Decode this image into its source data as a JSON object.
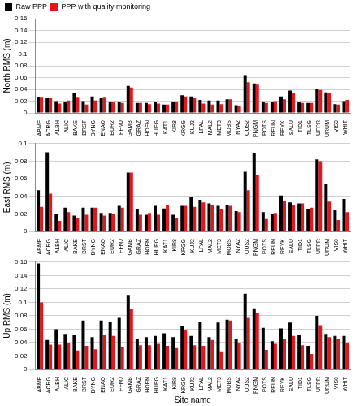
{
  "chart_data": [
    {
      "type": "bar",
      "y_label": "North RMS (m)",
      "grid": true,
      "legend": "top",
      "categories": [
        "ABMF",
        "ACRG",
        "ALBH",
        "ALIC",
        "BAKE",
        "BRST",
        "DYNG",
        "ENAO",
        "EUR2",
        "FFMJ",
        "GAMB",
        "GRAZ",
        "HOFN",
        "HUEG",
        "KAT1",
        "KIR8",
        "KRGG",
        "KUJ2",
        "LPAL",
        "MAL2",
        "MET3",
        "MOBS",
        "NYA2",
        "OUS2",
        "PNGM",
        "POTS",
        "REUN",
        "REYK",
        "SALU",
        "TID1",
        "TLSG",
        "UFPR",
        "URUM",
        "VIS0",
        "WHIT"
      ],
      "series": [
        {
          "name": "Raw PPP",
          "color": "#000000",
          "values": [
            0.027,
            0.025,
            0.02,
            0.018,
            0.033,
            0.02,
            0.028,
            0.025,
            0.018,
            0.018,
            0.046,
            0.017,
            0.017,
            0.019,
            0.014,
            0.018,
            0.03,
            0.028,
            0.022,
            0.021,
            0.021,
            0.023,
            0.013,
            0.064,
            0.05,
            0.018,
            0.019,
            0.028,
            0.038,
            0.018,
            0.017,
            0.041,
            0.035,
            0.015,
            0.02
          ]
        },
        {
          "name": "PPP with quality monitoring",
          "color": "#e8141c",
          "values": [
            0.026,
            0.025,
            0.016,
            0.021,
            0.026,
            0.014,
            0.021,
            0.026,
            0.018,
            0.017,
            0.043,
            0.017,
            0.015,
            0.016,
            0.014,
            0.019,
            0.028,
            0.025,
            0.016,
            0.014,
            0.015,
            0.023,
            0.012,
            0.052,
            0.048,
            0.017,
            0.02,
            0.023,
            0.034,
            0.017,
            0.017,
            0.039,
            0.033,
            0.014,
            0.022
          ]
        }
      ],
      "ylim": [
        0,
        0.16
      ],
      "yticks": [
        0,
        0.02,
        0.04,
        0.06,
        0.08,
        0.1,
        0.12,
        0.14,
        0.16
      ]
    },
    {
      "type": "bar",
      "y_label": "East RMS (m)",
      "grid": true,
      "categories": [
        "ABMF",
        "ACRG",
        "ALBH",
        "ALIC",
        "BAKE",
        "BRST",
        "DYNG",
        "ENAO",
        "EUR2",
        "FFMJ",
        "GAMB",
        "GRAZ",
        "HOFN",
        "HUEG",
        "KAT1",
        "KIR8",
        "KRGG",
        "KUJ2",
        "LPAL",
        "MAL2",
        "MET3",
        "MOBS",
        "NYA2",
        "OUS2",
        "PNGM",
        "POTS",
        "REUN",
        "REYK",
        "SALU",
        "TID1",
        "TLSG",
        "UFPR",
        "URUM",
        "VIS0",
        "WHIT"
      ],
      "series": [
        {
          "name": "Raw PPP",
          "color": "#000000",
          "values": [
            0.047,
            0.09,
            0.02,
            0.027,
            0.018,
            0.027,
            0.027,
            0.021,
            0.021,
            0.029,
            0.067,
            0.025,
            0.019,
            0.029,
            0.026,
            0.019,
            0.029,
            0.039,
            0.036,
            0.032,
            0.029,
            0.03,
            0.023,
            0.068,
            0.089,
            0.022,
            0.02,
            0.041,
            0.033,
            0.032,
            0.025,
            0.082,
            0.054,
            0.024,
            0.037
          ]
        },
        {
          "name": "PPP with quality monitoring",
          "color": "#e8141c",
          "values": [
            0.028,
            0.043,
            0.012,
            0.022,
            0.015,
            0.019,
            0.027,
            0.018,
            0.02,
            0.027,
            0.067,
            0.019,
            0.021,
            0.019,
            0.03,
            0.015,
            0.029,
            0.028,
            0.033,
            0.03,
            0.025,
            0.029,
            0.022,
            0.047,
            0.064,
            0.014,
            0.021,
            0.035,
            0.03,
            0.032,
            0.027,
            0.08,
            0.034,
            0.013,
            0.022
          ]
        }
      ],
      "ylim": [
        0,
        0.1
      ],
      "yticks": [
        0,
        0.02,
        0.04,
        0.06,
        0.08,
        0.1
      ]
    },
    {
      "type": "bar",
      "y_label": "Up RMS (m)",
      "x_label": "Site name",
      "grid": true,
      "categories": [
        "ABMF",
        "ACRG",
        "ALBH",
        "ALIC",
        "BAKE",
        "BRST",
        "DYNG",
        "ENAO",
        "EUR2",
        "FFMJ",
        "GAMB",
        "GRAZ",
        "HOFN",
        "HUEG",
        "KAT1",
        "KIR8",
        "KRGG",
        "KUJ2",
        "LPAL",
        "MAL2",
        "MET3",
        "MOBS",
        "NYA2",
        "OUS2",
        "PNGM",
        "POTS",
        "REUN",
        "REYK",
        "SALU",
        "TID1",
        "TLSG",
        "UFPR",
        "URUM",
        "VIS0",
        "WHIT"
      ],
      "series": [
        {
          "name": "Raw PPP",
          "color": "#000000",
          "values": [
            0.158,
            0.044,
            0.06,
            0.053,
            0.051,
            0.073,
            0.048,
            0.073,
            0.071,
            0.077,
            0.111,
            0.046,
            0.048,
            0.05,
            0.054,
            0.048,
            0.065,
            0.05,
            0.071,
            0.048,
            0.07,
            0.074,
            0.045,
            0.113,
            0.091,
            0.062,
            0.042,
            0.061,
            0.07,
            0.051,
            0.035,
            0.08,
            0.053,
            0.05,
            0.05
          ]
        },
        {
          "name": "PPP with quality monitoring",
          "color": "#e8141c",
          "values": [
            0.1,
            0.037,
            0.037,
            0.04,
            0.028,
            0.035,
            0.03,
            0.052,
            0.05,
            0.034,
            0.09,
            0.036,
            0.036,
            0.038,
            0.035,
            0.033,
            0.058,
            0.036,
            0.035,
            0.044,
            0.027,
            0.073,
            0.039,
            0.077,
            0.084,
            0.029,
            0.038,
            0.045,
            0.05,
            0.036,
            0.023,
            0.066,
            0.048,
            0.046,
            0.04
          ]
        }
      ],
      "ylim": [
        0,
        0.16
      ],
      "yticks": [
        0,
        0.02,
        0.04,
        0.06,
        0.08,
        0.1,
        0.12,
        0.14,
        0.16
      ]
    }
  ]
}
